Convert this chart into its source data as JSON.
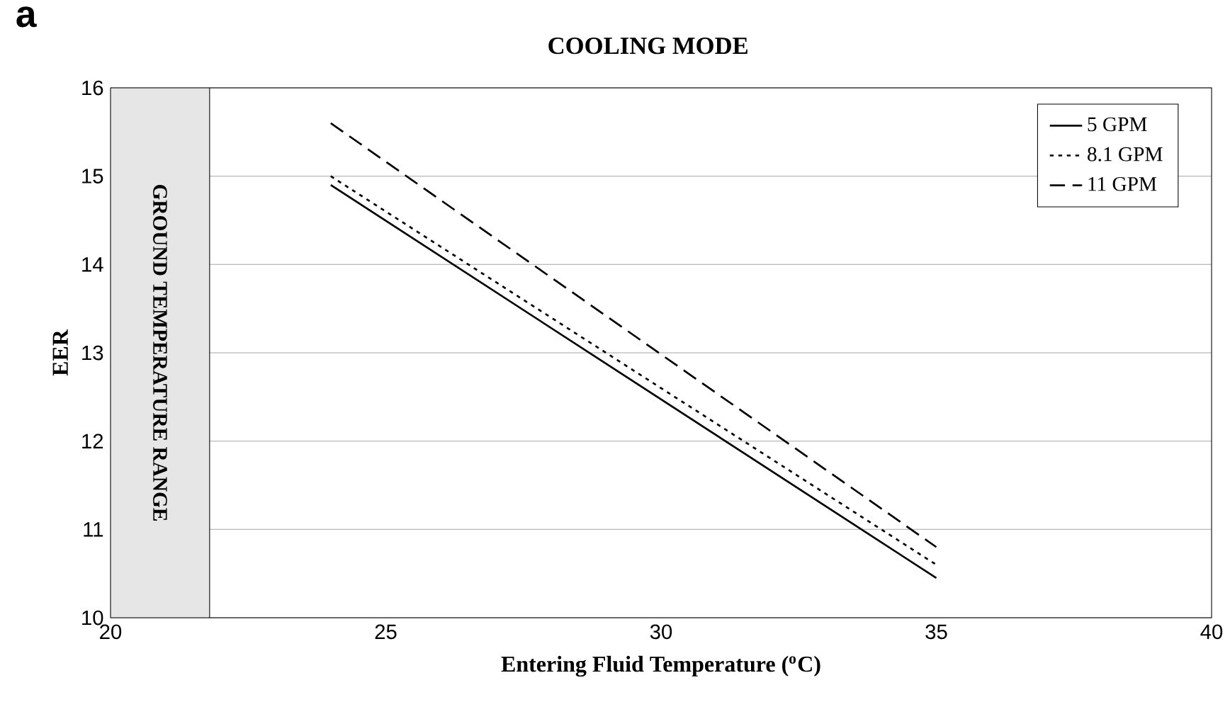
{
  "chart_data": {
    "type": "line",
    "title": "COOLING MODE",
    "xlabel": "Entering Fluid Temperature ($^{o}$C)",
    "ylabel": "EER",
    "annotations": [
      "a"
    ],
    "x": [
      24,
      35
    ],
    "xlim": [
      20,
      40
    ],
    "xticks": [
      20,
      25,
      30,
      35,
      40
    ],
    "ylim": [
      10,
      16
    ],
    "yticks": [
      10,
      11,
      12,
      13,
      14,
      15,
      16
    ],
    "grid": "y",
    "legend": "top right",
    "bands": [
      {
        "axis": "x",
        "from": 20,
        "to": 21.8,
        "label": "GROUND TEMPERATURE RANGE",
        "color": "#e6e6e6"
      }
    ],
    "series": [
      {
        "name": "5 GPM",
        "color": "#000000",
        "line_style": "solid",
        "values": [
          14.9,
          10.45
        ]
      },
      {
        "name": "8.1 GPM",
        "color": "#000000",
        "line_style": "dotted",
        "values": [
          15.0,
          10.6
        ]
      },
      {
        "name": "11 GPM",
        "color": "#000000",
        "line_style": "dashed",
        "values": [
          15.6,
          10.8
        ]
      }
    ]
  }
}
